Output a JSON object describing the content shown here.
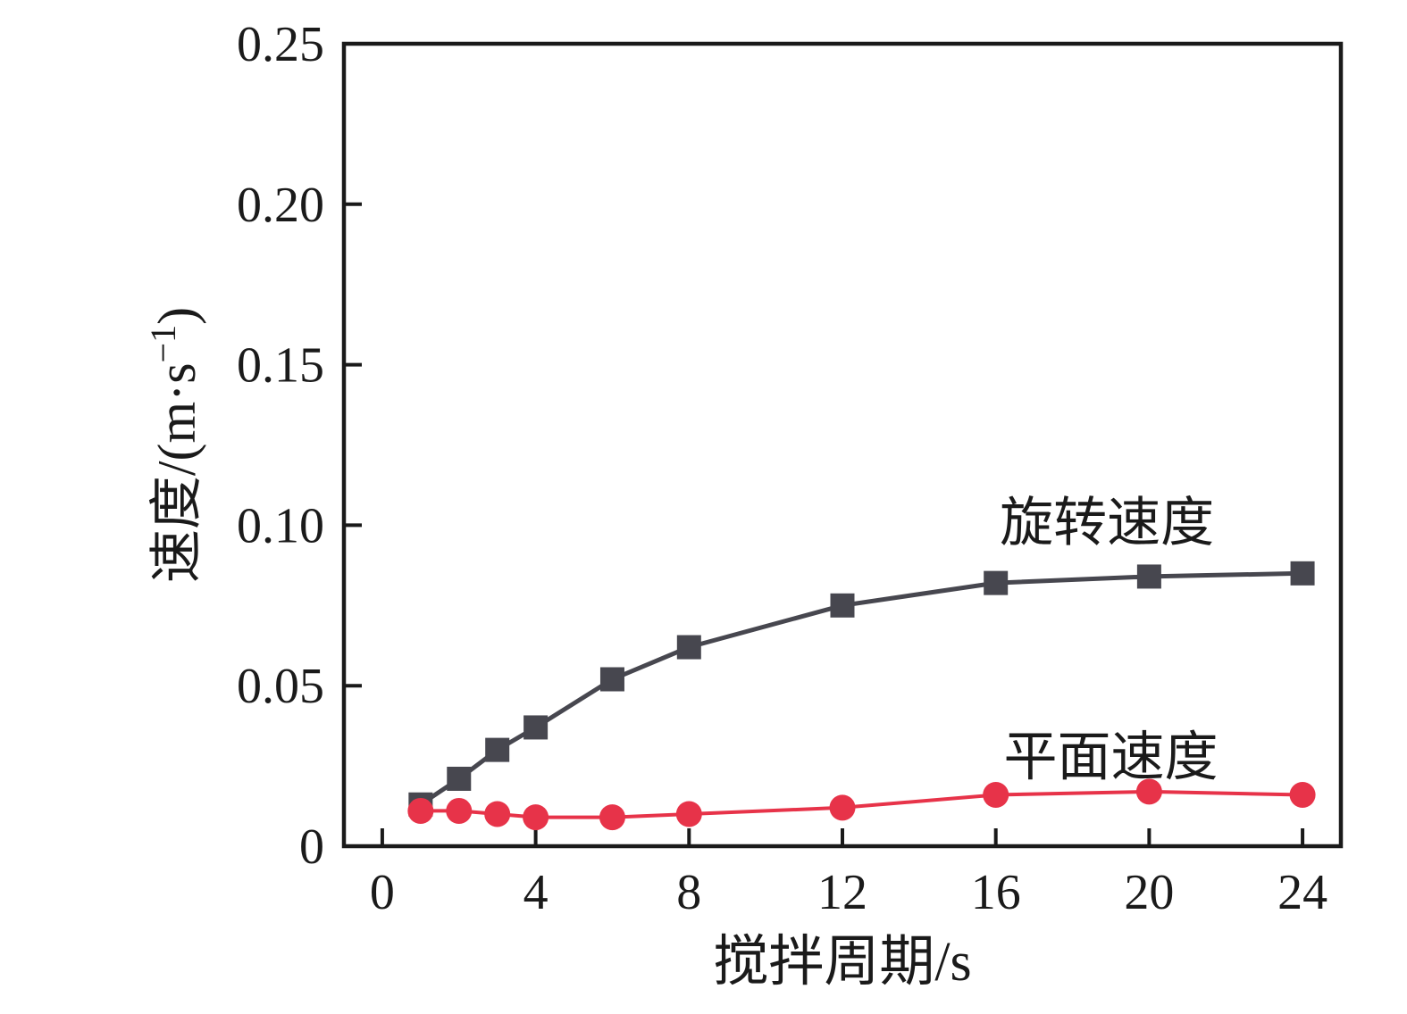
{
  "figure": {
    "background": "#ffffff",
    "ink_color": "#1a1a1a"
  },
  "chart_data": {
    "type": "line",
    "title": "",
    "xlabel": "搅拌周期/s",
    "ylabel": "速度/(m·s⁻¹)",
    "ylabel_main": "速度/(m·s",
    "ylabel_sup": "−1",
    "ylabel_close": ")",
    "grid": false,
    "legend_position": "inline-annotations",
    "xlim": [
      -1,
      25
    ],
    "ylim": [
      0,
      0.25
    ],
    "x_ticks": [
      {
        "v": 0,
        "label": "0"
      },
      {
        "v": 4,
        "label": "4"
      },
      {
        "v": 8,
        "label": "8"
      },
      {
        "v": 12,
        "label": "12"
      },
      {
        "v": 16,
        "label": "16"
      },
      {
        "v": 20,
        "label": "20"
      },
      {
        "v": 24,
        "label": "24"
      }
    ],
    "y_ticks": [
      {
        "v": 0,
        "label": "0",
        "tick": false
      },
      {
        "v": 0.05,
        "label": "0.05",
        "tick": true
      },
      {
        "v": 0.1,
        "label": "0.10",
        "tick": true
      },
      {
        "v": 0.15,
        "label": "0.15",
        "tick": true
      },
      {
        "v": 0.2,
        "label": "0.20",
        "tick": true
      },
      {
        "v": 0.25,
        "label": "0.25",
        "tick": false
      }
    ],
    "x": [
      1,
      2,
      3,
      4,
      6,
      8,
      12,
      16,
      20,
      24
    ],
    "series": [
      {
        "id": "rotation-speed",
        "name": "旋转速度",
        "marker": "square",
        "color": "#47474f",
        "line_width": 5,
        "marker_size": 27,
        "values": [
          0.013,
          0.021,
          0.03,
          0.037,
          0.052,
          0.062,
          0.075,
          0.082,
          0.084,
          0.085
        ],
        "label": {
          "text": "旋转速度",
          "x": 18.9,
          "y": 0.101
        }
      },
      {
        "id": "plane-speed",
        "name": "平面速度",
        "marker": "circle",
        "color": "#e73349",
        "line_width": 4,
        "marker_size": 29,
        "values": [
          0.011,
          0.011,
          0.01,
          0.009,
          0.009,
          0.01,
          0.012,
          0.016,
          0.017,
          0.016
        ],
        "label": {
          "text": "平面速度",
          "x": 19.0,
          "y": 0.028
        }
      }
    ]
  }
}
